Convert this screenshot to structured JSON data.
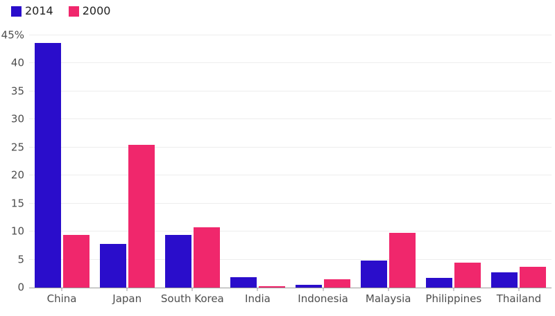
{
  "legend": {
    "items": [
      {
        "label": "2014",
        "color": "#2a0dcb"
      },
      {
        "label": "2000",
        "color": "#f0276c"
      }
    ],
    "position": "top-left"
  },
  "colors": {
    "series_2014": "#2a0dcb",
    "series_2000": "#f0276c",
    "gridline": "#ededed",
    "axis_line": "#9b9b9b",
    "axis_text": "#4d4d4d",
    "legend_text": "#222222",
    "background": "#ffffff"
  },
  "chart_data": {
    "type": "bar",
    "title": "",
    "xlabel": "",
    "ylabel": "",
    "grid": "horizontal",
    "legend_position": "top-left",
    "categories": [
      "China",
      "Japan",
      "South Korea",
      "India",
      "Indonesia",
      "Malaysia",
      "Philippines",
      "Thailand"
    ],
    "series": [
      {
        "name": "2014",
        "color": "#2a0dcb",
        "values": [
          43.7,
          7.8,
          9.4,
          1.8,
          0.5,
          4.8,
          1.7,
          2.7
        ]
      },
      {
        "name": "2000",
        "color": "#f0276c",
        "values": [
          9.4,
          25.5,
          10.8,
          0.3,
          1.5,
          9.8,
          4.5,
          3.7
        ]
      }
    ],
    "ylim": [
      0,
      45
    ],
    "yticks": [
      {
        "value": 0,
        "label": "0"
      },
      {
        "value": 5,
        "label": "5"
      },
      {
        "value": 10,
        "label": "10"
      },
      {
        "value": 15,
        "label": "15"
      },
      {
        "value": 20,
        "label": "20"
      },
      {
        "value": 25,
        "label": "25"
      },
      {
        "value": 30,
        "label": "30"
      },
      {
        "value": 35,
        "label": "35"
      },
      {
        "value": 40,
        "label": "40"
      },
      {
        "value": 45,
        "label": "45%"
      }
    ]
  }
}
